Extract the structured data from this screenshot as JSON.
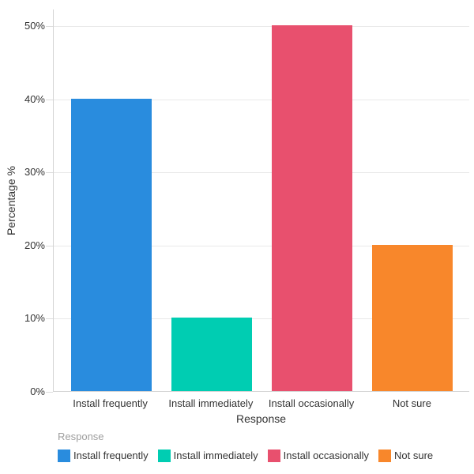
{
  "chart_data": {
    "type": "bar",
    "title": "",
    "xlabel": "Response",
    "ylabel": "Percentage %",
    "categories": [
      "Install frequently",
      "Install immediately",
      "Install occasionally",
      "Not sure"
    ],
    "values": [
      40,
      10,
      50,
      20
    ],
    "bar_colors": [
      "#298CDE",
      "#00CDB2",
      "#E8506E",
      "#F8872B"
    ],
    "ylim": [
      0,
      50
    ],
    "yticks": [
      0,
      10,
      20,
      30,
      40,
      50
    ],
    "ytick_suffix": "%",
    "grid": "horizontal",
    "legend_position": "bottom",
    "legend": {
      "title": "Response",
      "items": [
        {
          "label": "Install frequently",
          "color": "#298CDE"
        },
        {
          "label": "Install immediately",
          "color": "#00CDB2"
        },
        {
          "label": "Install occasionally",
          "color": "#E8506E"
        },
        {
          "label": "Not sure",
          "color": "#F8872B"
        }
      ]
    }
  },
  "style": {
    "background": "#FFFFFF",
    "axis_line_color": "#D4D4D4",
    "gridline_color": "#E9E9E9",
    "text_color": "#333333",
    "legend_title_color": "#9E9E9E"
  }
}
